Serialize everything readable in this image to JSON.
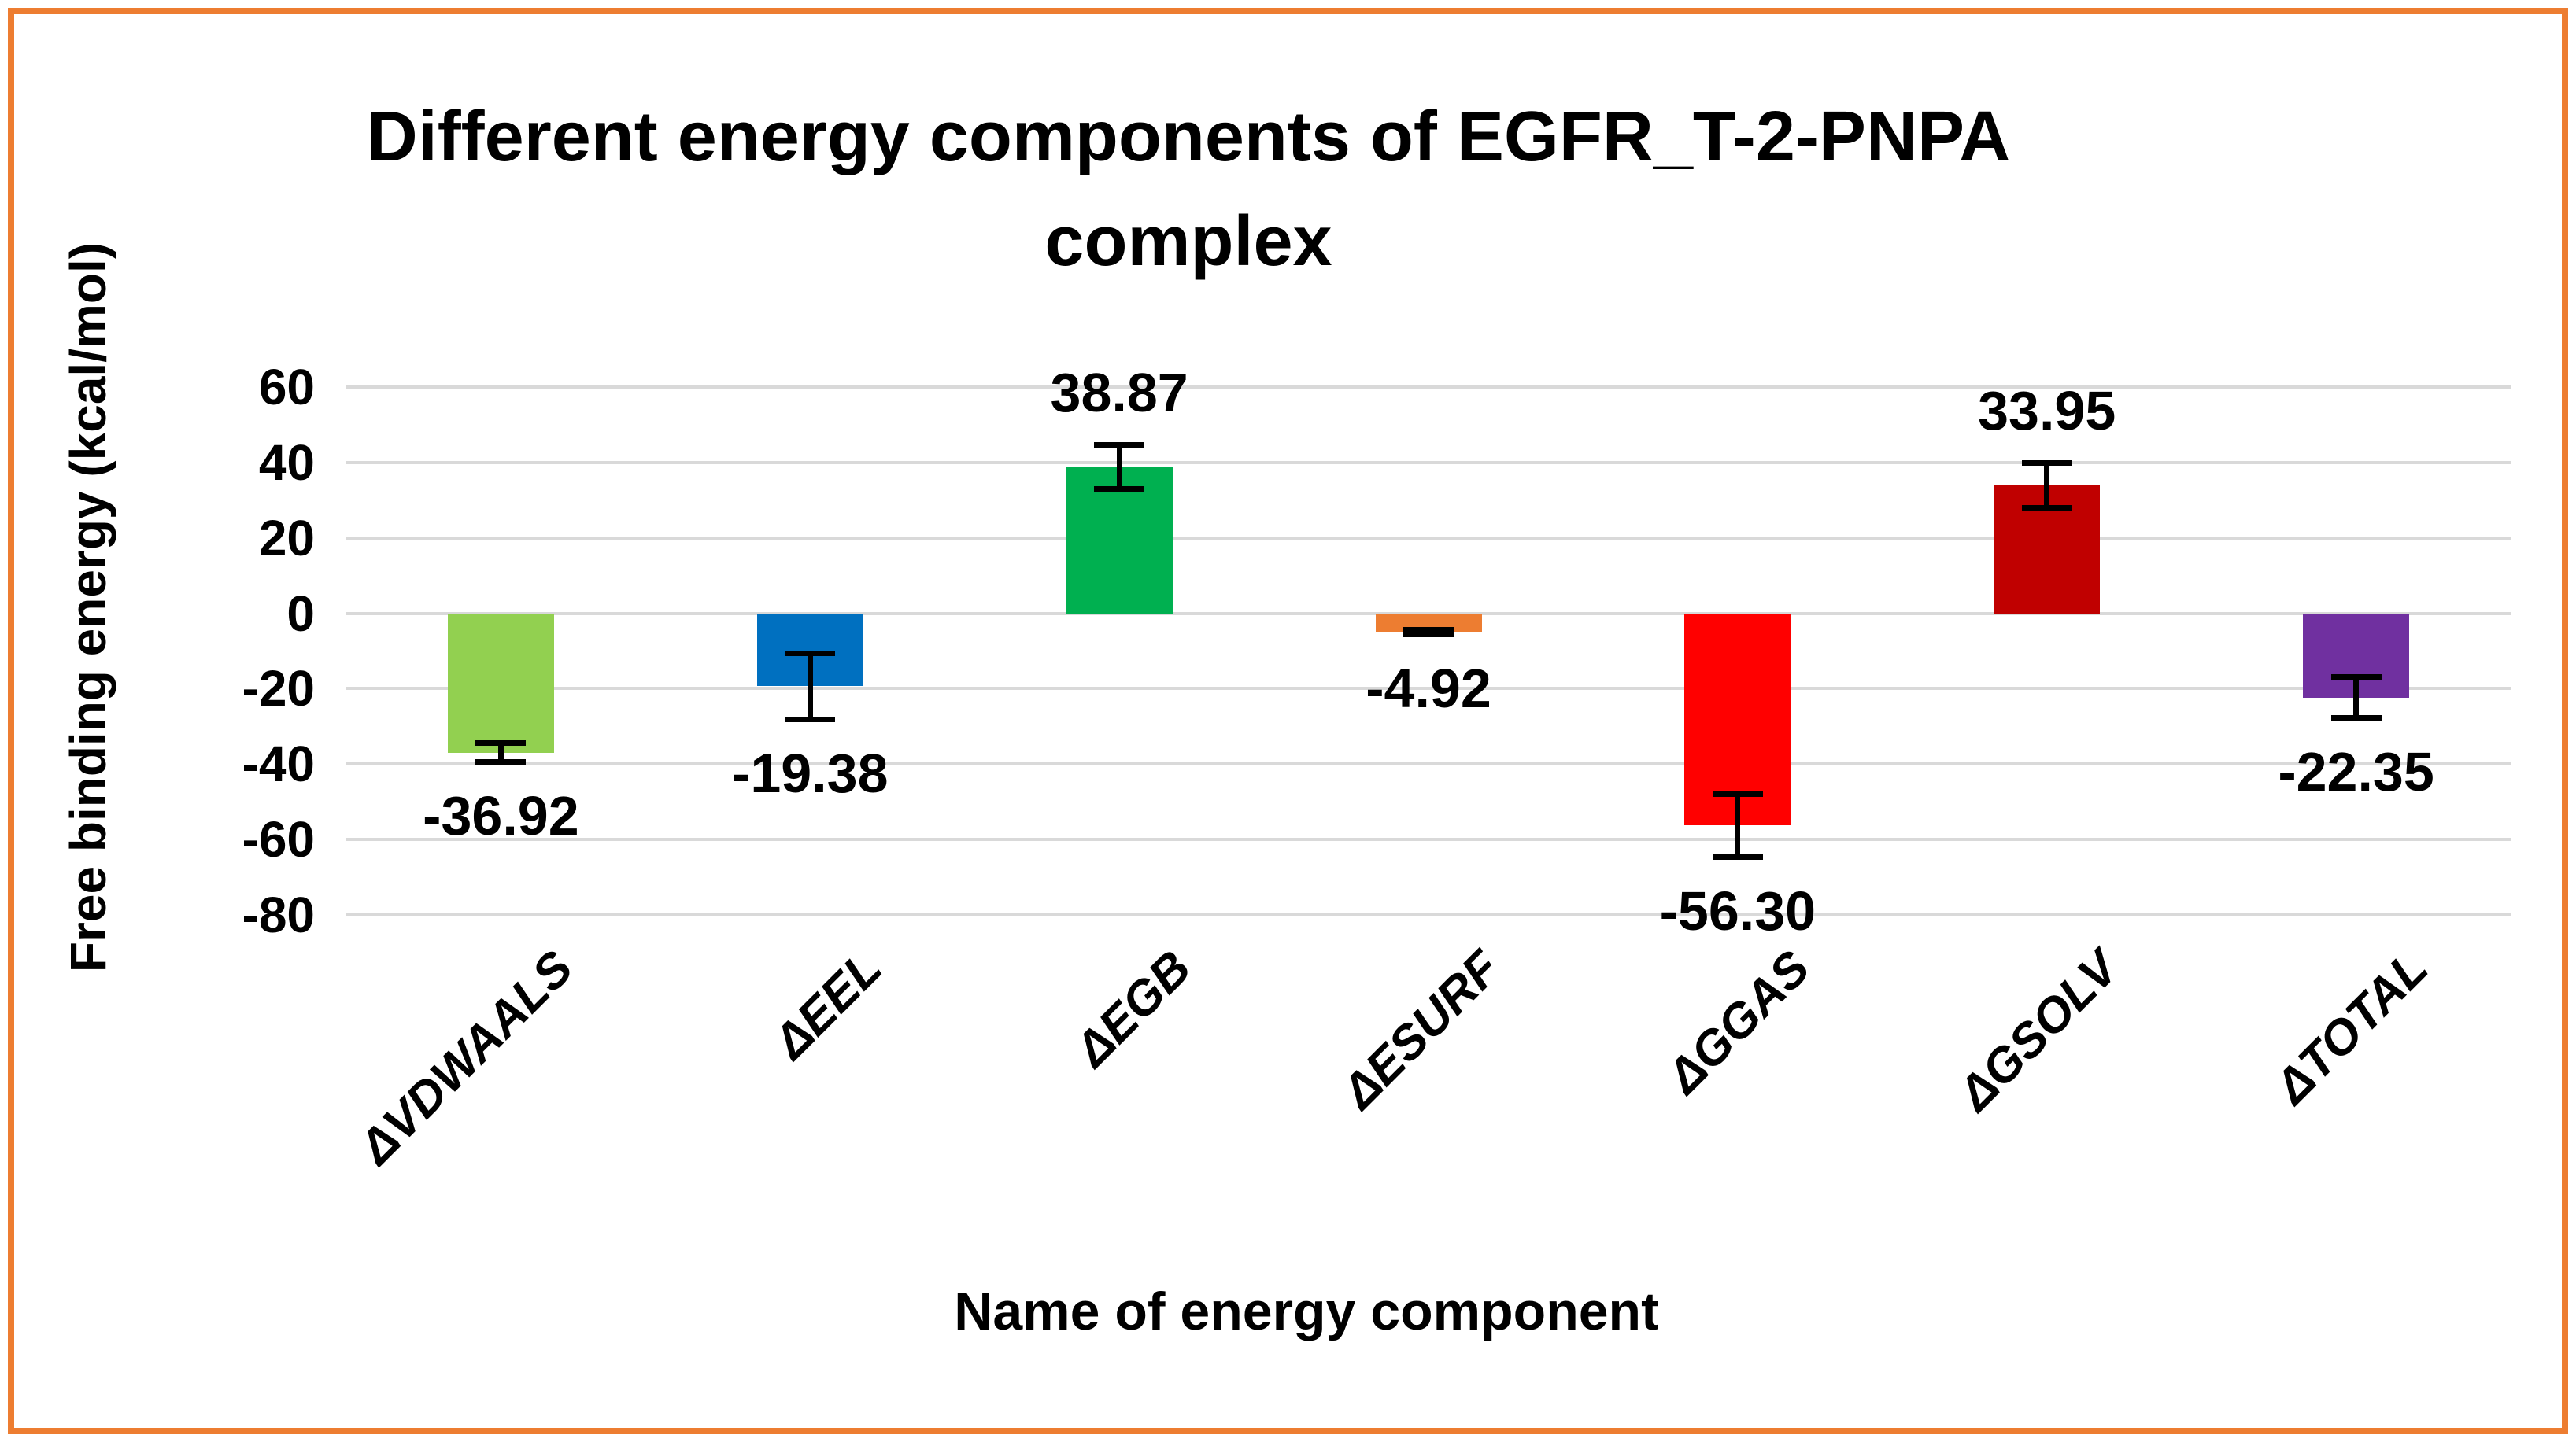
{
  "chart_data": {
    "type": "bar",
    "title": "Different energy components of EGFR_T-2-PNPA complex",
    "title_lines": [
      "Different energy components of EGFR_T-2-PNPA",
      "complex"
    ],
    "xlabel": "Name of energy component",
    "ylabel": "Free binding energy (kcal/mol)",
    "categories": [
      "ΔVDWAALS",
      "ΔEEL",
      "ΔEGB",
      "ΔESURF",
      "ΔGGAS",
      "ΔGSOLV",
      "ΔTOTAL"
    ],
    "values": [
      -36.92,
      -19.38,
      38.87,
      -4.92,
      -56.3,
      33.95,
      -22.35
    ],
    "data_labels": [
      "-36.92",
      "-19.38",
      "38.87",
      "-4.92",
      "-56.30",
      "33.95",
      "-22.35"
    ],
    "error_bars": [
      2.6,
      8.9,
      6.0,
      0.7,
      8.5,
      6.0,
      5.5
    ],
    "bar_colors": [
      "#92D050",
      "#0070C0",
      "#00B050",
      "#ED7D31",
      "#FF0000",
      "#C00000",
      "#7030A0"
    ],
    "yticks": [
      60,
      40,
      20,
      0,
      -20,
      -40,
      -60,
      -80
    ],
    "ylim": [
      -80,
      60
    ],
    "grid": true,
    "legend": false
  },
  "style": {
    "border_color": "#ED7D31",
    "gridline_color": "#D9D9D9",
    "error_bar_color": "#000000",
    "text_color": "#000000",
    "background": "#FFFFFF"
  }
}
